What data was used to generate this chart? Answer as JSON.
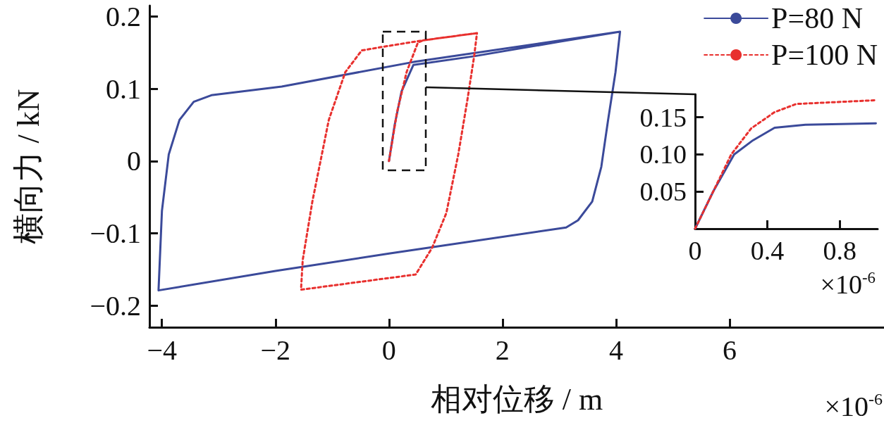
{
  "chart_data": [
    {
      "type": "line",
      "xlabel": "相对位移 / m",
      "ylabel": "横向力 / kN",
      "xlim": [
        -4.22,
        8.72
      ],
      "ylim": [
        -0.23,
        0.215
      ],
      "xticks": [
        {
          "value": -4,
          "label": "−4"
        },
        {
          "value": -2,
          "label": "−2"
        },
        0,
        2,
        4,
        6
      ],
      "yticks": [
        {
          "value": -0.2,
          "label": "−0.2"
        },
        {
          "value": -0.1,
          "label": "−0.1"
        },
        0,
        0.1,
        0.2
      ],
      "grid": false,
      "legend": "top right",
      "annotations": [
        "×10$^{-6}$"
      ],
      "series": [
        {
          "name": "P=80 N",
          "color": "#3b4a9a",
          "line_style": "solid",
          "x": [
            0,
            0.1,
            0.22,
            0.43,
            1.5,
            3.0,
            4.07,
            3.99,
            3.86,
            3.74,
            3.58,
            3.33,
            3.12,
            0,
            -2,
            -4.06,
            -4.0,
            -3.88,
            -3.69,
            -3.44,
            -3.13,
            -1.89,
            0.43,
            4.07
          ],
          "values": [
            0,
            0.05,
            0.096,
            0.133,
            0.145,
            0.165,
            0.179,
            0.123,
            0.057,
            -0.008,
            -0.056,
            -0.082,
            -0.092,
            -0.128,
            -0.152,
            -0.179,
            -0.069,
            0.009,
            0.057,
            0.082,
            0.091,
            0.103,
            0.137,
            0.179
          ]
        },
        {
          "name": "P=100 N",
          "color": "#e8302e",
          "line_style": "dotted",
          "x": [
            0,
            0.14,
            0.31,
            0.51,
            0.6,
            1.55,
            1.5,
            1.38,
            1.22,
            1.01,
            0.76,
            0.47,
            -1.55,
            -1.52,
            -1.35,
            -1.06,
            -0.77,
            -0.48,
            -0.11,
            0.6,
            1.55
          ],
          "values": [
            0,
            0.067,
            0.123,
            0.164,
            0.167,
            0.177,
            0.145,
            0.084,
            0.009,
            -0.072,
            -0.12,
            -0.157,
            -0.178,
            -0.137,
            -0.056,
            0.057,
            0.123,
            0.153,
            0.158,
            0.167,
            0.177
          ]
        }
      ]
    },
    {
      "type": "line",
      "xlim": [
        0,
        1.01
      ],
      "ylim": [
        0,
        0.181
      ],
      "xticks": [
        0,
        0.4,
        0.8
      ],
      "yticks": [
        0.05,
        {
          "value": 0.1,
          "label": "0.10"
        },
        0.15
      ],
      "grid": false,
      "annotations": [
        "×10$^{-6}$"
      ],
      "series": [
        {
          "color": "#3b4a9a",
          "line_style": "solid",
          "x": [
            0,
            0.1,
            0.216,
            0.32,
            0.44,
            0.61,
            1.0
          ],
          "values": [
            0,
            0.05,
            0.1,
            0.119,
            0.136,
            0.14,
            0.142
          ]
        },
        {
          "color": "#e8302e",
          "line_style": "dotted",
          "x": [
            0,
            0.1,
            0.2,
            0.31,
            0.44,
            0.56,
            1.0
          ],
          "values": [
            0,
            0.05,
            0.1,
            0.135,
            0.157,
            0.168,
            0.173
          ]
        }
      ]
    }
  ]
}
